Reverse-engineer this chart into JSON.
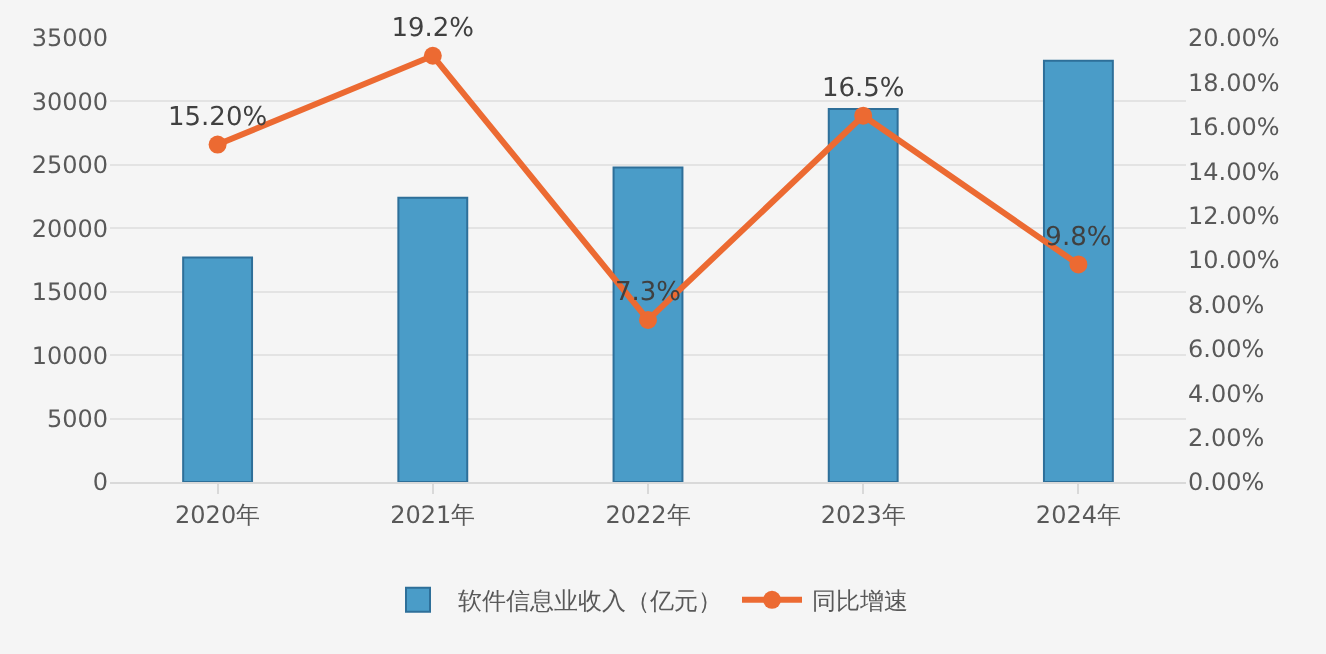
{
  "chart_data": {
    "type": "bar",
    "categories": [
      "2020年",
      "2021年",
      "2022年",
      "2023年",
      "2024年"
    ],
    "series": [
      {
        "name": "软件信息业收入（亿元）",
        "color": "#4a9cc8",
        "values": [
          17700,
          22400,
          24800,
          29400,
          33200
        ]
      },
      {
        "name": "同比增速",
        "type": "line",
        "axis": "y2",
        "color": "#ec6a32",
        "marker": "circle",
        "line_style": "solid",
        "values": [
          15.2,
          19.2,
          7.3,
          16.5,
          9.8
        ],
        "value_labels": [
          "15.20%",
          "19.2%",
          "7.3%",
          "16.5%",
          "9.8%"
        ]
      }
    ],
    "ylim": [
      0,
      35000
    ],
    "yticks": [
      0,
      5000,
      10000,
      15000,
      20000,
      25000,
      30000,
      35000
    ],
    "y2lim": [
      0,
      20
    ],
    "y2ticks": [
      {
        "value": 0,
        "label": "0.00%"
      },
      {
        "value": 2,
        "label": "2.00%"
      },
      {
        "value": 4,
        "label": "4.00%"
      },
      {
        "value": 6,
        "label": "6.00%"
      },
      {
        "value": 8,
        "label": "8.00%"
      },
      {
        "value": 10,
        "label": "10.00%"
      },
      {
        "value": 12,
        "label": "12.00%"
      },
      {
        "value": 14,
        "label": "14.00%"
      },
      {
        "value": 16,
        "label": "16.00%"
      },
      {
        "value": 18,
        "label": "18.00%"
      },
      {
        "value": 20,
        "label": "20.00%"
      }
    ],
    "grid": "y",
    "legend": "bottom"
  }
}
